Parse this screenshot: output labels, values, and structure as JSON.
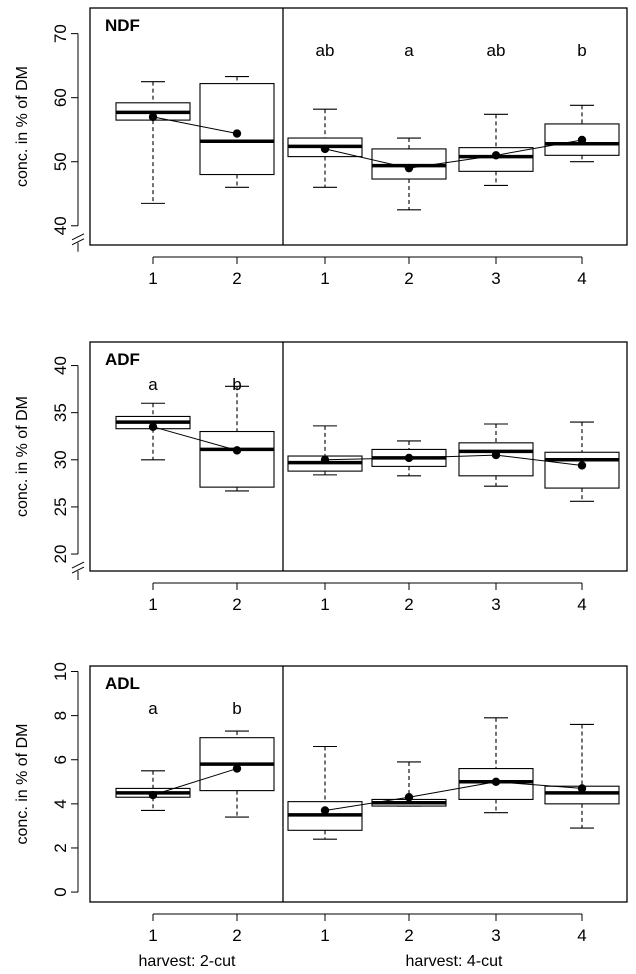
{
  "chart_data": [
    {
      "type": "box",
      "title": "NDF",
      "ylabel": "conc. in % of DM",
      "ylim": [
        37,
        74
      ],
      "yticks": [
        40,
        50,
        60,
        70
      ],
      "axis_break": true,
      "groups": [
        {
          "name": "harvest: 2-cut",
          "categories": [
            "1",
            "2"
          ],
          "boxes": [
            {
              "whisker_low": 43.5,
              "q1": 56.5,
              "median": 57.7,
              "q3": 59.2,
              "whisker_high": 62.5,
              "mean": 57.0
            },
            {
              "whisker_low": 46.0,
              "q1": 48.0,
              "median": 53.2,
              "q3": 62.2,
              "whisker_high": 63.3,
              "mean": 54.4
            }
          ],
          "letters": [
            "",
            ""
          ]
        },
        {
          "name": "harvest: 4-cut",
          "categories": [
            "1",
            "2",
            "3",
            "4"
          ],
          "boxes": [
            {
              "whisker_low": 46.0,
              "q1": 50.8,
              "median": 52.4,
              "q3": 53.7,
              "whisker_high": 58.2,
              "mean": 52.0
            },
            {
              "whisker_low": 42.5,
              "q1": 47.3,
              "median": 49.4,
              "q3": 52.0,
              "whisker_high": 53.7,
              "mean": 49.0
            },
            {
              "whisker_low": 46.3,
              "q1": 48.5,
              "median": 50.8,
              "q3": 52.2,
              "whisker_high": 57.4,
              "mean": 51.0
            },
            {
              "whisker_low": 50.0,
              "q1": 51.0,
              "median": 52.8,
              "q3": 55.9,
              "whisker_high": 58.8,
              "mean": 53.4
            }
          ],
          "letters": [
            "ab",
            "a",
            "ab",
            "b"
          ]
        }
      ]
    },
    {
      "type": "box",
      "title": "ADF",
      "ylabel": "conc. in % of DM",
      "ylim": [
        18.2,
        42.5
      ],
      "yticks": [
        20,
        25,
        30,
        35,
        40
      ],
      "axis_break": true,
      "groups": [
        {
          "name": "harvest: 2-cut",
          "categories": [
            "1",
            "2"
          ],
          "boxes": [
            {
              "whisker_low": 30.0,
              "q1": 33.3,
              "median": 34.0,
              "q3": 34.6,
              "whisker_high": 36.0,
              "mean": 33.5
            },
            {
              "whisker_low": 26.7,
              "q1": 27.1,
              "median": 31.1,
              "q3": 33.0,
              "whisker_high": 37.8,
              "mean": 31.0
            }
          ],
          "letters": [
            "a",
            "b"
          ]
        },
        {
          "name": "harvest: 4-cut",
          "categories": [
            "1",
            "2",
            "3",
            "4"
          ],
          "boxes": [
            {
              "whisker_low": 28.4,
              "q1": 28.8,
              "median": 29.7,
              "q3": 30.4,
              "whisker_high": 33.6,
              "mean": 30.0
            },
            {
              "whisker_low": 28.3,
              "q1": 29.3,
              "median": 30.2,
              "q3": 31.1,
              "whisker_high": 32.0,
              "mean": 30.2
            },
            {
              "whisker_low": 27.2,
              "q1": 28.3,
              "median": 30.9,
              "q3": 31.8,
              "whisker_high": 33.8,
              "mean": 30.5
            },
            {
              "whisker_low": 25.6,
              "q1": 27.0,
              "median": 30.0,
              "q3": 30.8,
              "whisker_high": 34.0,
              "mean": 29.4
            }
          ],
          "letters": [
            "",
            "",
            "",
            ""
          ]
        }
      ]
    },
    {
      "type": "box",
      "title": "ADL",
      "ylabel": "conc. in % of DM",
      "ylim": [
        -0.45,
        10.25
      ],
      "yticks": [
        0,
        2,
        4,
        6,
        8,
        10
      ],
      "axis_break": false,
      "groups": [
        {
          "name": "harvest: 2-cut",
          "categories": [
            "1",
            "2"
          ],
          "boxes": [
            {
              "whisker_low": 3.7,
              "q1": 4.3,
              "median": 4.5,
              "q3": 4.7,
              "whisker_high": 5.5,
              "mean": 4.4
            },
            {
              "whisker_low": 3.4,
              "q1": 4.6,
              "median": 5.8,
              "q3": 7.0,
              "whisker_high": 7.3,
              "mean": 5.6
            }
          ],
          "letters": [
            "a",
            "b"
          ]
        },
        {
          "name": "harvest: 4-cut",
          "categories": [
            "1",
            "2",
            "3",
            "4"
          ],
          "boxes": [
            {
              "whisker_low": 2.4,
              "q1": 2.8,
              "median": 3.5,
              "q3": 4.1,
              "whisker_high": 6.6,
              "mean": 3.7
            },
            {
              "whisker_low": 3.9,
              "q1": 3.9,
              "median": 4.05,
              "q3": 4.2,
              "whisker_high": 5.9,
              "mean": 4.3
            },
            {
              "whisker_low": 3.6,
              "q1": 4.2,
              "median": 5.0,
              "q3": 5.6,
              "whisker_high": 7.9,
              "mean": 5.0
            },
            {
              "whisker_low": 2.9,
              "q1": 4.0,
              "median": 4.5,
              "q3": 4.8,
              "whisker_high": 7.6,
              "mean": 4.7
            }
          ],
          "letters": [
            "",
            "",
            "",
            ""
          ]
        }
      ]
    }
  ],
  "xgroup_labels": [
    "harvest: 2-cut",
    "harvest: 4-cut"
  ]
}
